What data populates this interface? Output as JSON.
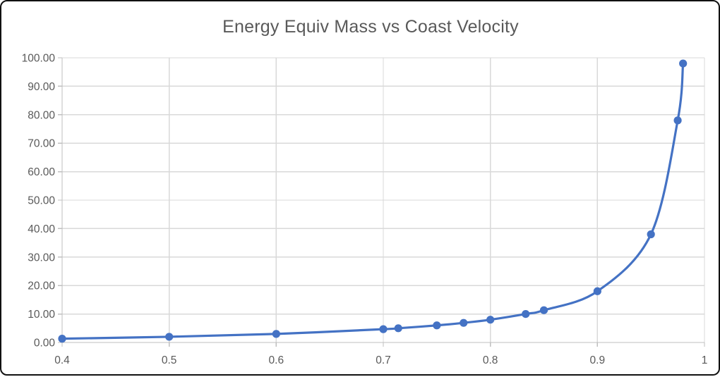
{
  "chart_data": {
    "type": "line",
    "title": "Energy Equiv Mass vs Coast Velocity",
    "xlabel": "",
    "ylabel": "",
    "xlim": [
      0.4,
      1.0
    ],
    "ylim": [
      0,
      100
    ],
    "grid": true,
    "legend": "none",
    "smooth_line": true,
    "marker": "circle",
    "x_tick_values": [
      0.4,
      0.5,
      0.6,
      0.7,
      0.8,
      0.9,
      1.0
    ],
    "x_tick_labels": [
      "0.4",
      "0.5",
      "0.6",
      "0.7",
      "0.8",
      "0.9",
      "1"
    ],
    "y_tick_values": [
      0,
      10,
      20,
      30,
      40,
      50,
      60,
      70,
      80,
      90,
      100
    ],
    "y_tick_labels": [
      "0.00",
      "10.00",
      "20.00",
      "30.00",
      "40.00",
      "50.00",
      "60.00",
      "70.00",
      "80.00",
      "90.00",
      "100.00"
    ],
    "series": [
      {
        "name": "Energy Equiv Mass",
        "x": [
          0.4,
          0.5,
          0.6,
          0.7,
          0.714,
          0.75,
          0.775,
          0.8,
          0.833,
          0.85,
          0.9,
          0.95,
          0.975,
          0.98
        ],
        "y": [
          1.33,
          2.0,
          3.0,
          4.67,
          5.0,
          6.0,
          6.89,
          8.0,
          10.0,
          11.33,
          18.0,
          38.0,
          78.0,
          98.0
        ]
      }
    ],
    "colors": {
      "series": "#4472C4",
      "gridline": "#D9D9D9",
      "axis": "#BFBFBF",
      "tick_text": "#595959",
      "title_text": "#595959",
      "background": "#FFFFFF",
      "frame_border": "#111111"
    }
  }
}
